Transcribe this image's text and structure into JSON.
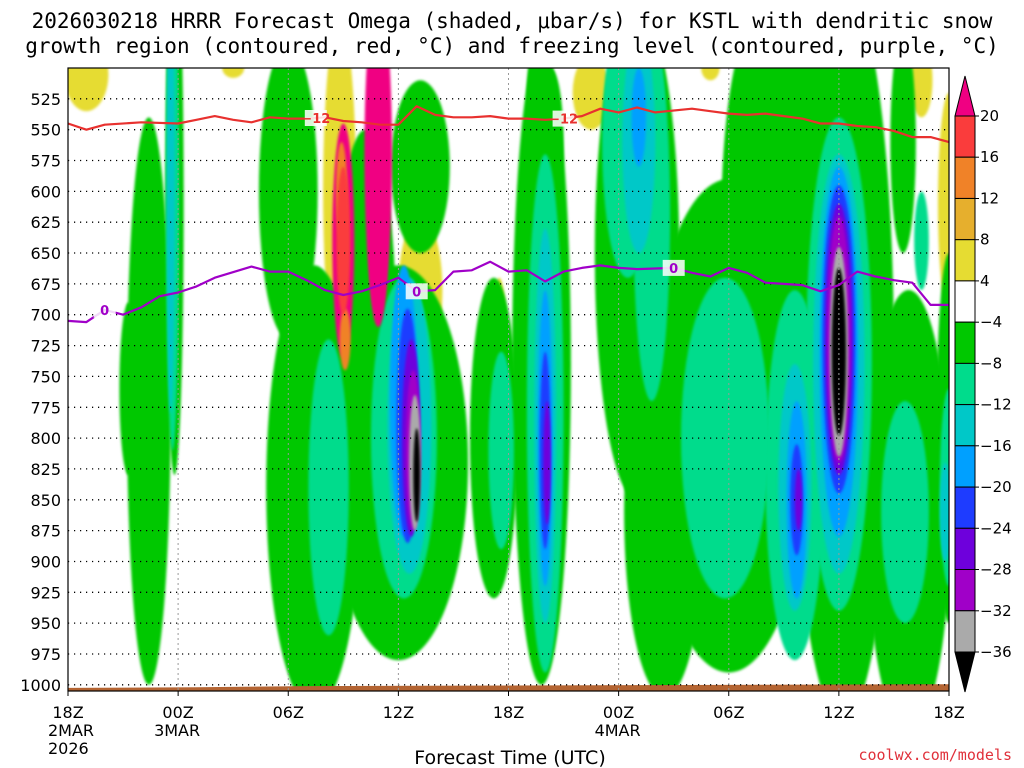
{
  "chart_data": {
    "type": "heatmap",
    "title_line1": "2026030218 HRRR Forecast Omega (shaded, μbar/s) for KSTL with dendritic snow",
    "title_line2": "growth region (contoured, red, °C) and freezing level (contoured, purple, °C)",
    "xlabel": "Forecast Time (UTC)",
    "credit": "coolwx.com/models",
    "x_range_hours": [
      0,
      48
    ],
    "x_ticks": [
      {
        "hour": 0,
        "label": "18Z",
        "date": "2MAR",
        "year": "2026"
      },
      {
        "hour": 6,
        "label": "00Z",
        "date": "3MAR",
        "year": ""
      },
      {
        "hour": 12,
        "label": "06Z",
        "date": "",
        "year": ""
      },
      {
        "hour": 18,
        "label": "12Z",
        "date": "",
        "year": ""
      },
      {
        "hour": 24,
        "label": "18Z",
        "date": "",
        "year": ""
      },
      {
        "hour": 30,
        "label": "00Z",
        "date": "4MAR",
        "year": ""
      },
      {
        "hour": 36,
        "label": "06Z",
        "date": "",
        "year": ""
      },
      {
        "hour": 42,
        "label": "12Z",
        "date": "",
        "year": ""
      },
      {
        "hour": 48,
        "label": "18Z",
        "date": "",
        "year": ""
      }
    ],
    "y_range_mb": [
      1005,
      500
    ],
    "y_ticks": [
      525,
      550,
      575,
      600,
      625,
      650,
      675,
      700,
      725,
      750,
      775,
      800,
      825,
      850,
      875,
      900,
      925,
      950,
      975,
      1000
    ],
    "colorbar": {
      "levels": [
        -36,
        -32,
        -28,
        -24,
        -20,
        -16,
        -12,
        -8,
        -4,
        4,
        8,
        12,
        16,
        20
      ],
      "colors": [
        "#000000",
        "#aaaaaa",
        "#a000c8",
        "#6e00dc",
        "#1e3cff",
        "#00a0ff",
        "#00c8c8",
        "#00dc8c",
        "#00c800",
        "#ffffff",
        "#e6dc32",
        "#e6af2d",
        "#f08228",
        "#fa3c3c",
        "#f00082"
      ],
      "labels": [
        "20",
        "16",
        "12",
        "8",
        "4",
        "−4",
        "−8",
        "−12",
        "−16",
        "−20",
        "−24",
        "−28",
        "−32",
        "−36"
      ]
    },
    "contours": [
      {
        "name": "dendritic growth region",
        "value": "−12",
        "color": "#e8312f",
        "points": [
          [
            0,
            545
          ],
          [
            1,
            550
          ],
          [
            2,
            546
          ],
          [
            4,
            544
          ],
          [
            6,
            545
          ],
          [
            7,
            542
          ],
          [
            8,
            539
          ],
          [
            9,
            542
          ],
          [
            10,
            544
          ],
          [
            11,
            540
          ],
          [
            12,
            541
          ],
          [
            13,
            541
          ],
          [
            14,
            540
          ],
          [
            15,
            543
          ],
          [
            16,
            544
          ],
          [
            17,
            546
          ],
          [
            18,
            546
          ],
          [
            19,
            531
          ],
          [
            20,
            538
          ],
          [
            21,
            540
          ],
          [
            22,
            540
          ],
          [
            23,
            539
          ],
          [
            24,
            541
          ],
          [
            25,
            541
          ],
          [
            26,
            542
          ],
          [
            27,
            541
          ],
          [
            28,
            539
          ],
          [
            29,
            533
          ],
          [
            30,
            536
          ],
          [
            31,
            532
          ],
          [
            32,
            536
          ],
          [
            34,
            533
          ],
          [
            35,
            535
          ],
          [
            36,
            537
          ],
          [
            37,
            538
          ],
          [
            38,
            537
          ],
          [
            39,
            539
          ],
          [
            40,
            541
          ],
          [
            41,
            545
          ],
          [
            42,
            545
          ],
          [
            43,
            547
          ],
          [
            44,
            548
          ],
          [
            45,
            551
          ],
          [
            46,
            556
          ],
          [
            47,
            556
          ],
          [
            48,
            560
          ]
        ],
        "labels_at_hours": [
          13.5,
          27
        ]
      },
      {
        "name": "freezing level",
        "value": "0",
        "color": "#a000c8",
        "points": [
          [
            0,
            705
          ],
          [
            1,
            706
          ],
          [
            2,
            696
          ],
          [
            3,
            700
          ],
          [
            4,
            694
          ],
          [
            5,
            685
          ],
          [
            6,
            682
          ],
          [
            7,
            677
          ],
          [
            8,
            670
          ],
          [
            10,
            661
          ],
          [
            11,
            665
          ],
          [
            12,
            665
          ],
          [
            13,
            672
          ],
          [
            14,
            680
          ],
          [
            15,
            684
          ],
          [
            16,
            681
          ],
          [
            17,
            676
          ],
          [
            18,
            670
          ],
          [
            19,
            681
          ],
          [
            20,
            680
          ],
          [
            21,
            665
          ],
          [
            22,
            664
          ],
          [
            23,
            657
          ],
          [
            24,
            665
          ],
          [
            25,
            664
          ],
          [
            26,
            673
          ],
          [
            27,
            665
          ],
          [
            28,
            662
          ],
          [
            29,
            660
          ],
          [
            30,
            662
          ],
          [
            31,
            663
          ],
          [
            33,
            662
          ],
          [
            34,
            666
          ],
          [
            35,
            669
          ],
          [
            36,
            662
          ],
          [
            37,
            666
          ],
          [
            38,
            674
          ],
          [
            39,
            675
          ],
          [
            40,
            676
          ],
          [
            41,
            681
          ],
          [
            42,
            676
          ],
          [
            43,
            665
          ],
          [
            44,
            669
          ],
          [
            45,
            672
          ],
          [
            46,
            674
          ],
          [
            47,
            692
          ],
          [
            48,
            692
          ]
        ],
        "labels_at_hours": [
          2,
          19,
          33
        ]
      }
    ],
    "annotations": [
      "−12",
      "−12",
      "0",
      "0",
      "0"
    ]
  }
}
